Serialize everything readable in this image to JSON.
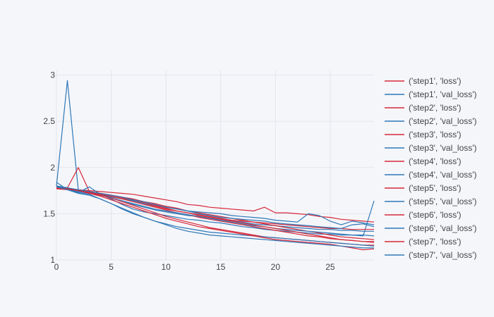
{
  "chart_data": {
    "type": "line",
    "title": "",
    "xlabel": "",
    "ylabel": "",
    "xlim": [
      0,
      29
    ],
    "ylim": [
      1,
      3.05
    ],
    "x_ticks": [
      0,
      5,
      10,
      15,
      20,
      25
    ],
    "y_ticks": [
      1,
      1.5,
      2,
      2.5,
      3
    ],
    "x_tick_labels": [
      "0",
      "5",
      "10",
      "15",
      "20",
      "25"
    ],
    "y_tick_labels": [
      "1",
      "1.5",
      "2",
      "2.5",
      "3"
    ],
    "grid": true,
    "legend_position": "right",
    "colors": {
      "loss": "#d62839",
      "val_loss": "#2e78b7",
      "grid": "#e3e5ec",
      "background": "#f5f6fa"
    },
    "x": [
      0,
      1,
      2,
      3,
      4,
      5,
      6,
      7,
      8,
      9,
      10,
      11,
      12,
      13,
      14,
      15,
      16,
      17,
      18,
      19,
      20,
      21,
      22,
      23,
      24,
      25,
      26,
      27,
      28,
      29
    ],
    "series": [
      {
        "name": "('step1', 'loss')",
        "kind": "loss",
        "values": [
          1.78,
          1.77,
          1.76,
          1.75,
          1.74,
          1.73,
          1.72,
          1.71,
          1.69,
          1.67,
          1.65,
          1.63,
          1.6,
          1.59,
          1.57,
          1.56,
          1.55,
          1.54,
          1.53,
          1.57,
          1.51,
          1.51,
          1.5,
          1.49,
          1.47,
          1.46,
          1.44,
          1.43,
          1.42,
          1.41
        ]
      },
      {
        "name": "('step1', 'val_loss')",
        "kind": "val_loss",
        "values": [
          1.8,
          2.94,
          1.75,
          1.73,
          1.71,
          1.66,
          1.6,
          1.55,
          1.52,
          1.5,
          1.48,
          1.46,
          1.44,
          1.43,
          1.41,
          1.4,
          1.38,
          1.36,
          1.35,
          1.33,
          1.32,
          1.31,
          1.3,
          1.29,
          1.28,
          1.28,
          1.27,
          1.27,
          1.26,
          1.64
        ]
      },
      {
        "name": "('step2', 'loss')",
        "kind": "loss",
        "values": [
          1.79,
          1.78,
          2.0,
          1.74,
          1.72,
          1.7,
          1.67,
          1.64,
          1.61,
          1.58,
          1.55,
          1.53,
          1.51,
          1.49,
          1.47,
          1.45,
          1.43,
          1.42,
          1.41,
          1.4,
          1.39,
          1.38,
          1.37,
          1.36,
          1.35,
          1.34,
          1.34,
          1.33,
          1.33,
          1.33
        ]
      },
      {
        "name": "('step2', 'val_loss')",
        "kind": "val_loss",
        "values": [
          1.8,
          1.77,
          1.73,
          1.79,
          1.71,
          1.67,
          1.63,
          1.6,
          1.57,
          1.54,
          1.52,
          1.5,
          1.48,
          1.47,
          1.45,
          1.44,
          1.42,
          1.41,
          1.39,
          1.38,
          1.37,
          1.36,
          1.35,
          1.34,
          1.33,
          1.33,
          1.32,
          1.32,
          1.31,
          1.31
        ]
      },
      {
        "name": "('step3', 'loss')",
        "kind": "loss",
        "values": [
          1.78,
          1.77,
          1.76,
          1.74,
          1.72,
          1.7,
          1.68,
          1.66,
          1.63,
          1.61,
          1.58,
          1.56,
          1.53,
          1.51,
          1.49,
          1.47,
          1.45,
          1.43,
          1.41,
          1.39,
          1.37,
          1.35,
          1.33,
          1.31,
          1.29,
          1.27,
          1.25,
          1.24,
          1.23,
          1.22
        ]
      },
      {
        "name": "('step3', 'val_loss')",
        "kind": "val_loss",
        "values": [
          1.8,
          1.78,
          1.75,
          1.73,
          1.71,
          1.68,
          1.66,
          1.64,
          1.61,
          1.59,
          1.57,
          1.55,
          1.53,
          1.52,
          1.51,
          1.5,
          1.48,
          1.47,
          1.46,
          1.45,
          1.43,
          1.42,
          1.41,
          1.5,
          1.48,
          1.42,
          1.38,
          1.42,
          1.4,
          1.38
        ]
      },
      {
        "name": "('step4', 'loss')",
        "kind": "loss",
        "values": [
          1.77,
          1.76,
          1.75,
          1.73,
          1.71,
          1.69,
          1.66,
          1.63,
          1.6,
          1.57,
          1.54,
          1.51,
          1.49,
          1.46,
          1.44,
          1.42,
          1.4,
          1.38,
          1.36,
          1.34,
          1.32,
          1.3,
          1.28,
          1.26,
          1.25,
          1.23,
          1.22,
          1.21,
          1.2,
          1.2
        ]
      },
      {
        "name": "('step4', 'val_loss')",
        "kind": "val_loss",
        "values": [
          1.79,
          1.77,
          1.74,
          1.72,
          1.7,
          1.67,
          1.64,
          1.61,
          1.58,
          1.55,
          1.53,
          1.51,
          1.49,
          1.47,
          1.45,
          1.43,
          1.41,
          1.39,
          1.37,
          1.36,
          1.34,
          1.33,
          1.32,
          1.31,
          1.3,
          1.29,
          1.28,
          1.27,
          1.27,
          1.26
        ]
      },
      {
        "name": "('step5', 'loss')",
        "kind": "loss",
        "values": [
          1.78,
          1.77,
          1.76,
          1.74,
          1.72,
          1.7,
          1.68,
          1.65,
          1.62,
          1.59,
          1.56,
          1.53,
          1.51,
          1.48,
          1.46,
          1.44,
          1.42,
          1.4,
          1.38,
          1.36,
          1.34,
          1.32,
          1.3,
          1.28,
          1.26,
          1.24,
          1.22,
          1.21,
          1.2,
          1.19
        ]
      },
      {
        "name": "('step5', 'val_loss')",
        "kind": "val_loss",
        "values": [
          1.8,
          1.78,
          1.76,
          1.74,
          1.72,
          1.7,
          1.68,
          1.65,
          1.63,
          1.6,
          1.57,
          1.55,
          1.53,
          1.5,
          1.48,
          1.46,
          1.45,
          1.44,
          1.43,
          1.42,
          1.4,
          1.39,
          1.38,
          1.37,
          1.36,
          1.35,
          1.34,
          1.38,
          1.39,
          1.36
        ]
      },
      {
        "name": "('step6', 'loss')",
        "kind": "loss",
        "values": [
          1.78,
          1.77,
          1.75,
          1.73,
          1.7,
          1.67,
          1.63,
          1.59,
          1.55,
          1.51,
          1.47,
          1.44,
          1.41,
          1.38,
          1.35,
          1.33,
          1.31,
          1.29,
          1.27,
          1.25,
          1.24,
          1.23,
          1.22,
          1.21,
          1.2,
          1.19,
          1.18,
          1.17,
          1.16,
          1.16
        ]
      },
      {
        "name": "('step6', 'val_loss')",
        "kind": "val_loss",
        "values": [
          1.84,
          1.76,
          1.72,
          1.7,
          1.66,
          1.61,
          1.56,
          1.51,
          1.46,
          1.42,
          1.39,
          1.36,
          1.34,
          1.32,
          1.3,
          1.29,
          1.28,
          1.27,
          1.26,
          1.25,
          1.24,
          1.23,
          1.22,
          1.21,
          1.2,
          1.19,
          1.18,
          1.17,
          1.16,
          1.15
        ]
      },
      {
        "name": "('step7', 'loss')",
        "kind": "loss",
        "values": [
          1.78,
          1.77,
          1.75,
          1.72,
          1.69,
          1.65,
          1.61,
          1.57,
          1.53,
          1.49,
          1.45,
          1.42,
          1.39,
          1.36,
          1.34,
          1.32,
          1.3,
          1.28,
          1.26,
          1.24,
          1.22,
          1.21,
          1.2,
          1.19,
          1.18,
          1.17,
          1.15,
          1.13,
          1.11,
          1.12
        ]
      },
      {
        "name": "('step7', 'val_loss')",
        "kind": "val_loss",
        "values": [
          1.79,
          1.76,
          1.73,
          1.71,
          1.66,
          1.61,
          1.55,
          1.5,
          1.46,
          1.42,
          1.38,
          1.34,
          1.31,
          1.29,
          1.27,
          1.26,
          1.25,
          1.24,
          1.23,
          1.22,
          1.21,
          1.2,
          1.19,
          1.18,
          1.17,
          1.16,
          1.15,
          1.14,
          1.13,
          1.13
        ]
      }
    ]
  }
}
